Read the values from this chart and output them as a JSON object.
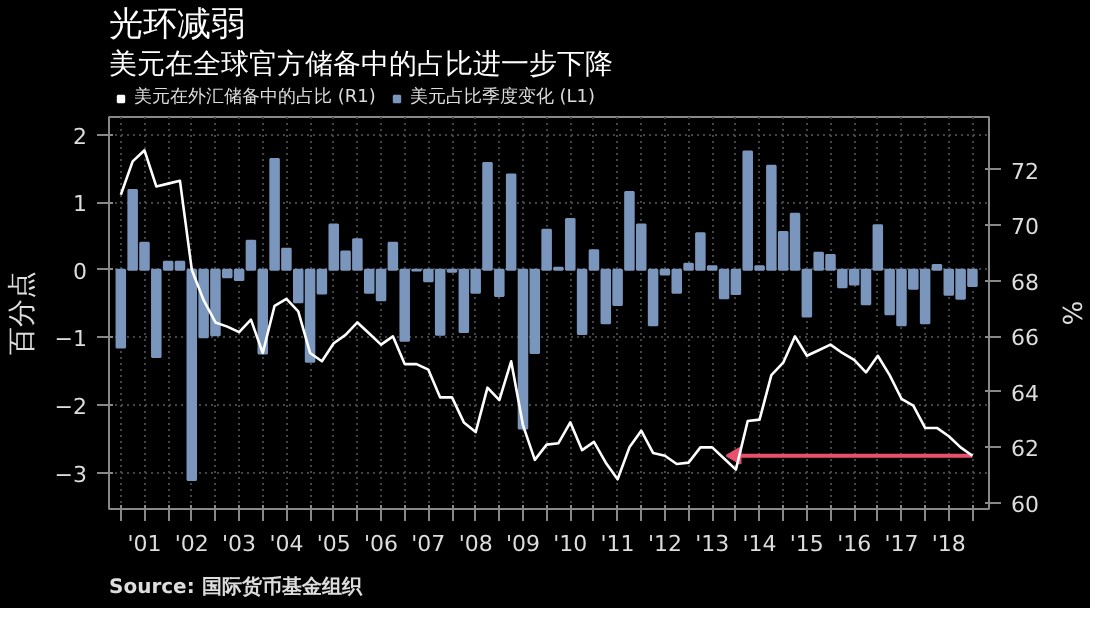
{
  "chart_data": {
    "type": "bar",
    "title": "光环减弱",
    "subtitle": "美元在全球官方储备中的占比进一步下降",
    "ylabel": "百分点",
    "y2label": "%",
    "annotations": [
      "Source: 国际货币基金组织"
    ],
    "x": [
      2000.5,
      2000.75,
      2001,
      2001.25,
      2001.5,
      2001.75,
      2002,
      2002.25,
      2002.5,
      2002.75,
      2003,
      2003.25,
      2003.5,
      2003.75,
      2004,
      2004.25,
      2004.5,
      2004.75,
      2005,
      2005.25,
      2005.5,
      2005.75,
      2006,
      2006.25,
      2006.5,
      2006.75,
      2007,
      2007.25,
      2007.5,
      2007.75,
      2008,
      2008.25,
      2008.5,
      2008.75,
      2009,
      2009.25,
      2009.5,
      2009.75,
      2010,
      2010.25,
      2010.5,
      2010.75,
      2011,
      2011.25,
      2011.5,
      2011.75,
      2012,
      2012.25,
      2012.5,
      2012.75,
      2013,
      2013.25,
      2013.5,
      2013.75,
      2014,
      2014.25,
      2014.5,
      2014.75,
      2015,
      2015.25,
      2015.5,
      2015.75,
      2016,
      2016.25,
      2016.5,
      2016.75,
      2017,
      2017.25,
      2017.5,
      2017.75,
      2018,
      2018.25,
      2018.5
    ],
    "series": [
      {
        "name": "美元在外汇储备中的占比 (R1)",
        "type": "line",
        "axis": "y2",
        "color": "#ffffff",
        "values": [
          71.1,
          72.3,
          72.7,
          71.4,
          71.5,
          71.6,
          68.4,
          67.3,
          66.5,
          66.35,
          66.15,
          66.6,
          65.4,
          67.1,
          67.35,
          66.9,
          65.4,
          65.1,
          65.75,
          66.05,
          66.5,
          66.1,
          65.7,
          66.0,
          65.0,
          65.0,
          64.8,
          63.8,
          63.8,
          62.9,
          62.55,
          64.15,
          63.7,
          65.1,
          62.8,
          61.55,
          62.1,
          62.15,
          62.9,
          61.9,
          62.2,
          61.45,
          60.85,
          62.0,
          62.6,
          61.8,
          61.7,
          61.4,
          61.45,
          62.0,
          62.0,
          61.6,
          61.2,
          62.95,
          63.0,
          64.6,
          65.05,
          66.0,
          65.3,
          65.5,
          65.7,
          65.4,
          65.15,
          64.7,
          65.3,
          64.6,
          63.75,
          63.5,
          62.7,
          62.7,
          62.4,
          62.0,
          61.7
        ]
      },
      {
        "name": "美元占比季度变化 (L1)",
        "color": "#7b96bd",
        "values": [
          -1.15,
          1.18,
          0.4,
          -1.29,
          0.12,
          0.12,
          -3.11,
          -1.0,
          -0.97,
          -0.11,
          -0.15,
          0.43,
          -1.24,
          1.64,
          0.31,
          -0.48,
          -1.36,
          -0.35,
          0.67,
          0.27,
          0.45,
          -0.34,
          -0.45,
          0.4,
          -1.05,
          -0.01,
          -0.17,
          -0.96,
          -0.03,
          -0.92,
          -0.34,
          1.58,
          -0.39,
          1.41,
          -2.35,
          -1.23,
          0.59,
          0.03,
          0.75,
          -0.95,
          0.29,
          -0.79,
          -0.52,
          1.15,
          0.67,
          -0.82,
          -0.07,
          -0.34,
          0.09,
          0.54,
          0.05,
          -0.42,
          -0.36,
          1.75,
          0.05,
          1.54,
          0.56,
          0.83,
          -0.69,
          0.25,
          0.22,
          -0.26,
          -0.22,
          -0.51,
          0.66,
          -0.66,
          -0.82,
          -0.28,
          -0.79,
          0.07,
          -0.37,
          -0.43,
          -0.24
        ]
      }
    ],
    "xlim": [
      2000.25,
      2018.85
    ],
    "xticks": [
      {
        "value": 2000.5,
        "label": null
      },
      {
        "value": 2001,
        "label": "'01"
      },
      {
        "value": 2001.5,
        "label": null
      },
      {
        "value": 2002,
        "label": "'02"
      },
      {
        "value": 2002.5,
        "label": null
      },
      {
        "value": 2003,
        "label": "'03"
      },
      {
        "value": 2003.5,
        "label": null
      },
      {
        "value": 2004,
        "label": "'04"
      },
      {
        "value": 2004.5,
        "label": null
      },
      {
        "value": 2005,
        "label": "'05"
      },
      {
        "value": 2005.5,
        "label": null
      },
      {
        "value": 2006,
        "label": "'06"
      },
      {
        "value": 2006.5,
        "label": null
      },
      {
        "value": 2007,
        "label": "'07"
      },
      {
        "value": 2007.5,
        "label": null
      },
      {
        "value": 2008,
        "label": "'08"
      },
      {
        "value": 2008.5,
        "label": null
      },
      {
        "value": 2009,
        "label": "'09"
      },
      {
        "value": 2009.5,
        "label": null
      },
      {
        "value": 2010,
        "label": "'10"
      },
      {
        "value": 2010.5,
        "label": null
      },
      {
        "value": 2011,
        "label": "'11"
      },
      {
        "value": 2011.5,
        "label": null
      },
      {
        "value": 2012,
        "label": "'12"
      },
      {
        "value": 2012.5,
        "label": null
      },
      {
        "value": 2013,
        "label": "'13"
      },
      {
        "value": 2013.5,
        "label": null
      },
      {
        "value": 2014,
        "label": "'14"
      },
      {
        "value": 2014.5,
        "label": null
      },
      {
        "value": 2015,
        "label": "'15"
      },
      {
        "value": 2015.5,
        "label": null
      },
      {
        "value": 2016,
        "label": "'16"
      },
      {
        "value": 2016.5,
        "label": null
      },
      {
        "value": 2017,
        "label": "'17"
      },
      {
        "value": 2017.5,
        "label": null
      },
      {
        "value": 2018,
        "label": "'18"
      },
      {
        "value": 2018.5,
        "label": null
      }
    ],
    "ylim": [
      -3.54,
      2.26
    ],
    "yticks": [
      -3,
      -2,
      -1,
      0,
      1,
      2
    ],
    "y2lim": [
      59.78,
      73.9
    ],
    "y2ticks": [
      60,
      62,
      64,
      66,
      68,
      70,
      72
    ],
    "grid": true,
    "legend": "top left"
  }
}
